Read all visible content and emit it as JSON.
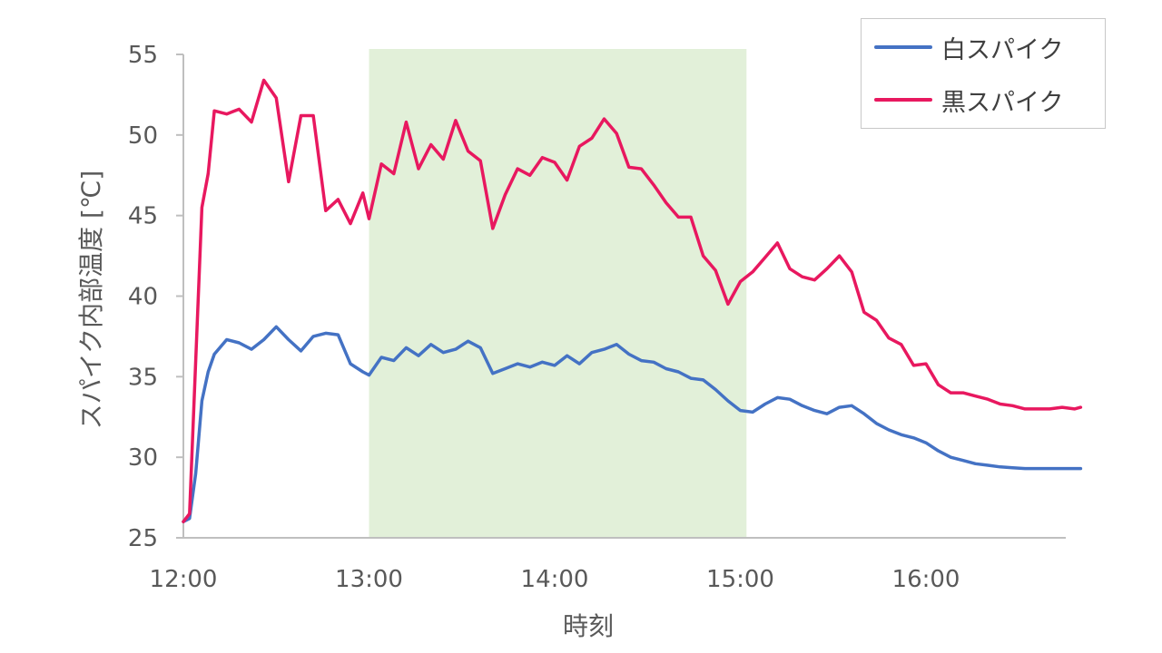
{
  "chart_data": {
    "type": "line",
    "xlabel": "時刻",
    "ylabel": "スパイク内部温度 [℃]",
    "xlim": [
      "12:00",
      "16:50"
    ],
    "ylim": [
      25,
      55
    ],
    "x_ticks": [
      "12:00",
      "13:00",
      "14:00",
      "15:00",
      "16:00"
    ],
    "y_ticks": [
      "25",
      "30",
      "35",
      "40",
      "45",
      "50",
      "55"
    ],
    "grid": false,
    "legend_position": "top-right",
    "highlight_band": {
      "x_start": "13:00",
      "x_end": "15:02",
      "color": "#e2f0d9"
    },
    "x": [
      "12:00",
      "12:02",
      "12:04",
      "12:06",
      "12:08",
      "12:10",
      "12:14",
      "12:18",
      "12:22",
      "12:26",
      "12:30",
      "12:34",
      "12:38",
      "12:42",
      "12:46",
      "12:50",
      "12:54",
      "12:58",
      "13:00",
      "13:04",
      "13:08",
      "13:12",
      "13:16",
      "13:20",
      "13:24",
      "13:28",
      "13:32",
      "13:36",
      "13:40",
      "13:44",
      "13:48",
      "13:52",
      "13:56",
      "14:00",
      "14:04",
      "14:08",
      "14:12",
      "14:16",
      "14:20",
      "14:24",
      "14:28",
      "14:32",
      "14:36",
      "14:40",
      "14:44",
      "14:48",
      "14:52",
      "14:56",
      "15:00",
      "15:04",
      "15:08",
      "15:12",
      "15:16",
      "15:20",
      "15:24",
      "15:28",
      "15:32",
      "15:36",
      "15:40",
      "15:44",
      "15:48",
      "15:52",
      "15:56",
      "16:00",
      "16:04",
      "16:08",
      "16:12",
      "16:16",
      "16:20",
      "16:24",
      "16:28",
      "16:32",
      "16:36",
      "16:40",
      "16:44",
      "16:48",
      "16:50"
    ],
    "series": [
      {
        "name": "白スパイク",
        "color": "#4472c4",
        "values": [
          26,
          26.2,
          29,
          33.5,
          35.3,
          36.4,
          37.3,
          37.1,
          36.7,
          37.3,
          38.1,
          37.3,
          36.6,
          37.5,
          37.7,
          37.6,
          35.8,
          35.3,
          35.1,
          36.2,
          36.0,
          36.8,
          36.3,
          37.0,
          36.5,
          36.7,
          37.2,
          36.8,
          35.2,
          35.5,
          35.8,
          35.6,
          35.9,
          35.7,
          36.3,
          35.8,
          36.5,
          36.7,
          37.0,
          36.4,
          36.0,
          35.9,
          35.5,
          35.3,
          34.9,
          34.8,
          34.2,
          33.5,
          32.9,
          32.8,
          33.3,
          33.7,
          33.6,
          33.2,
          32.9,
          32.7,
          33.1,
          33.2,
          32.7,
          32.1,
          31.7,
          31.4,
          31.2,
          30.9,
          30.4,
          30.0,
          29.8,
          29.6,
          29.5,
          29.4,
          29.35,
          29.3,
          29.3,
          29.3,
          29.3,
          29.3,
          29.3
        ]
      },
      {
        "name": "黒スパイク",
        "color": "#e8185f",
        "values": [
          26,
          26.5,
          36,
          45.5,
          47.6,
          51.5,
          51.3,
          51.6,
          50.8,
          53.4,
          52.3,
          47.1,
          51.2,
          51.2,
          45.3,
          46.0,
          44.5,
          46.4,
          44.8,
          48.2,
          47.6,
          50.8,
          47.9,
          49.4,
          48.5,
          50.9,
          49.0,
          48.4,
          44.2,
          46.3,
          47.9,
          47.5,
          48.6,
          48.3,
          47.2,
          49.3,
          49.8,
          51.0,
          50.1,
          48.0,
          47.9,
          46.9,
          45.8,
          44.9,
          44.9,
          42.5,
          41.6,
          39.5,
          40.9,
          41.5,
          42.4,
          43.3,
          41.7,
          41.2,
          41.0,
          41.7,
          42.5,
          41.5,
          39.0,
          38.5,
          37.4,
          37.0,
          35.7,
          35.8,
          34.5,
          34.0,
          34.0,
          33.8,
          33.6,
          33.3,
          33.2,
          33.0,
          33.0,
          33.0,
          33.1,
          33.0,
          33.1
        ]
      }
    ]
  }
}
